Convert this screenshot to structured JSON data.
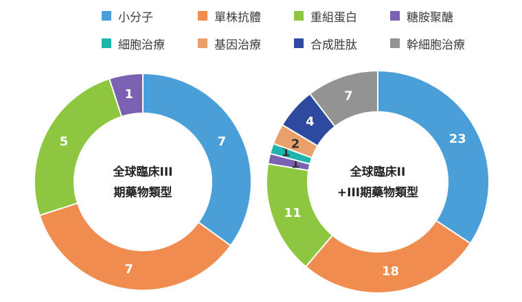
{
  "chart_data": [
    {
      "type": "pie",
      "donut": true,
      "center_text": [
        "全球臨床III",
        "期藥物類型"
      ],
      "slices": [
        {
          "name": "小分子",
          "value": 7,
          "color": "#4a9fd8"
        },
        {
          "name": "單株抗體",
          "value": 7,
          "color": "#f18c4f"
        },
        {
          "name": "重組蛋白",
          "value": 5,
          "color": "#8dc63f"
        },
        {
          "name": "糖胺聚醣",
          "value": 1,
          "color": "#7b61b1"
        }
      ]
    },
    {
      "type": "pie",
      "donut": true,
      "center_text": [
        "全球臨床II",
        "+III期藥物類型"
      ],
      "slices": [
        {
          "name": "小分子",
          "value": 23,
          "color": "#4a9fd8"
        },
        {
          "name": "單株抗體",
          "value": 18,
          "color": "#f18c4f"
        },
        {
          "name": "重組蛋白",
          "value": 11,
          "color": "#8dc63f"
        },
        {
          "name": "糖胺聚醣",
          "value": 1,
          "color": "#7b61b1"
        },
        {
          "name": "細胞治療",
          "value": 1,
          "color": "#1fb5ad"
        },
        {
          "name": "基因治療",
          "value": 2,
          "color": "#e9a06b"
        },
        {
          "name": "合成胜肽",
          "value": 4,
          "color": "#2e4a9e"
        },
        {
          "name": "幹細胞治療",
          "value": 7,
          "color": "#939393"
        }
      ]
    }
  ],
  "legend": [
    {
      "label": "小分子",
      "color": "#4a9fd8"
    },
    {
      "label": "單株抗體",
      "color": "#f18c4f"
    },
    {
      "label": "重組蛋白",
      "color": "#8dc63f"
    },
    {
      "label": "糖胺聚醣",
      "color": "#7b61b1"
    },
    {
      "label": "細胞治療",
      "color": "#1fb5ad"
    },
    {
      "label": "基因治療",
      "color": "#e9a06b"
    },
    {
      "label": "合成胜肽",
      "color": "#2e4a9e"
    },
    {
      "label": "幹細胞治療",
      "color": "#939393"
    }
  ]
}
